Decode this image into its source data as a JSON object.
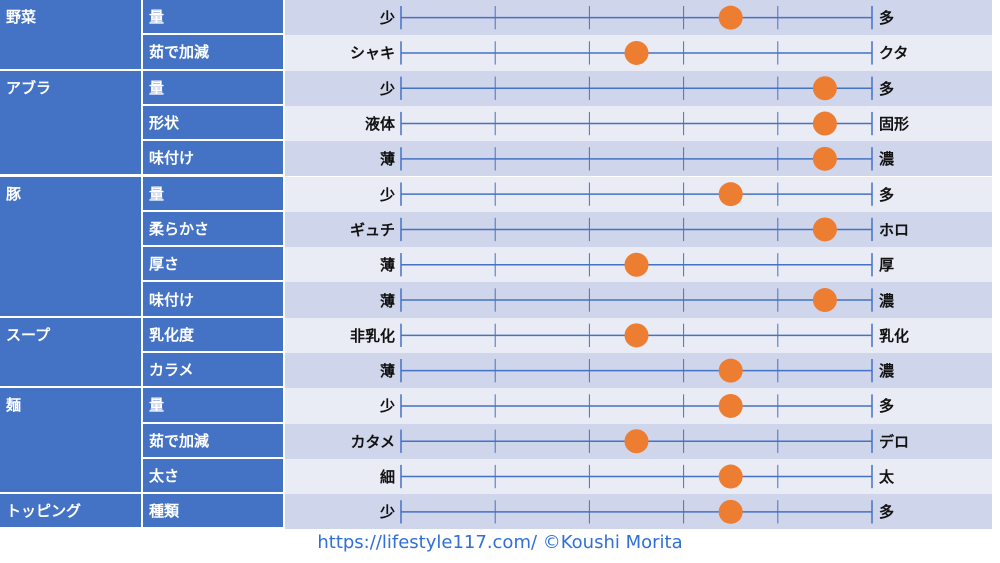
{
  "chart_data": {
    "type": "scatter",
    "scale_steps": 5,
    "marker_color": "#ed7d31",
    "line_color": "#4472c4",
    "header_color": "#4472c4",
    "band_colors": [
      "#cfd5ea",
      "#e9ebf5"
    ],
    "groups": [
      {
        "category": "野菜",
        "rows": [
          {
            "attribute": "量",
            "left": "少",
            "right": "多",
            "value": 3.5
          },
          {
            "attribute": "茹で加減",
            "left": "シャキ",
            "right": "クタ",
            "value": 2.5
          }
        ]
      },
      {
        "category": "アブラ",
        "rows": [
          {
            "attribute": "量",
            "left": "少",
            "right": "多",
            "value": 4.5
          },
          {
            "attribute": "形状",
            "left": "液体",
            "right": "固形",
            "value": 4.5
          },
          {
            "attribute": "味付け",
            "left": "薄",
            "right": "濃",
            "value": 4.5
          }
        ]
      },
      {
        "category": "豚",
        "rows": [
          {
            "attribute": "量",
            "left": "少",
            "right": "多",
            "value": 3.5
          },
          {
            "attribute": "柔らかさ",
            "left": "ギュチ",
            "right": "ホロ",
            "value": 4.5
          },
          {
            "attribute": "厚さ",
            "left": "薄",
            "right": "厚",
            "value": 2.5
          },
          {
            "attribute": "味付け",
            "left": "薄",
            "right": "濃",
            "value": 4.5
          }
        ]
      },
      {
        "category": "スープ",
        "rows": [
          {
            "attribute": "乳化度",
            "left": "非乳化",
            "right": "乳化",
            "value": 2.5
          },
          {
            "attribute": "カラメ",
            "left": "薄",
            "right": "濃",
            "value": 3.5
          }
        ]
      },
      {
        "category": "麺",
        "rows": [
          {
            "attribute": "量",
            "left": "少",
            "right": "多",
            "value": 3.5
          },
          {
            "attribute": "茹で加減",
            "left": "カタメ",
            "right": "デロ",
            "value": 2.5
          },
          {
            "attribute": "太さ",
            "left": "細",
            "right": "太",
            "value": 3.5
          }
        ]
      },
      {
        "category": "トッピング",
        "rows": [
          {
            "attribute": "種類",
            "left": "少",
            "right": "多",
            "value": 3.5
          }
        ]
      }
    ]
  },
  "footer": "https://lifestyle117.com/  ©Koushi Morita"
}
